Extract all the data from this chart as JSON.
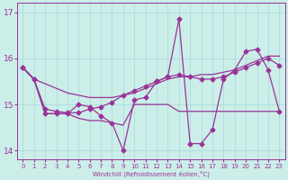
{
  "xlabel": "Windchill (Refroidissement éolien,°C)",
  "background_color": "#cceee8",
  "grid_color": "#aadddd",
  "line_color": "#993399",
  "xlim": [
    -0.5,
    23.5
  ],
  "ylim": [
    13.8,
    17.2
  ],
  "xticks": [
    0,
    1,
    2,
    3,
    4,
    5,
    6,
    7,
    8,
    9,
    10,
    11,
    12,
    13,
    14,
    15,
    16,
    17,
    18,
    19,
    20,
    21,
    22,
    23
  ],
  "yticks": [
    14,
    15,
    16,
    17
  ],
  "line1_x": [
    0,
    1,
    2,
    3,
    4,
    5,
    6,
    7,
    8,
    9,
    10,
    11,
    12,
    13,
    14,
    15,
    16,
    17,
    18,
    19,
    20,
    21,
    22,
    23
  ],
  "line1_y": [
    15.8,
    15.55,
    15.45,
    15.35,
    15.25,
    15.2,
    15.15,
    15.15,
    15.15,
    15.2,
    15.25,
    15.35,
    15.45,
    15.55,
    15.6,
    15.6,
    15.65,
    15.65,
    15.7,
    15.75,
    15.85,
    15.95,
    16.05,
    16.05
  ],
  "line2_x": [
    0,
    1,
    2,
    3,
    4,
    5,
    6,
    7,
    8,
    9,
    10,
    11,
    12,
    13,
    14,
    15,
    16,
    17,
    18,
    19,
    20,
    21,
    22,
    23
  ],
  "line2_y": [
    15.8,
    15.55,
    14.8,
    14.8,
    14.8,
    15.0,
    14.95,
    14.75,
    14.6,
    14.0,
    15.1,
    15.15,
    15.5,
    15.6,
    16.85,
    14.15,
    14.15,
    14.45,
    15.55,
    15.75,
    16.15,
    16.2,
    15.75,
    14.85
  ],
  "line3_x": [
    0,
    1,
    2,
    3,
    4,
    5,
    6,
    7,
    8,
    9,
    10,
    11,
    12,
    13,
    14,
    15,
    16,
    17,
    18,
    19,
    20,
    21,
    22,
    23
  ],
  "line3_y": [
    15.8,
    15.55,
    14.8,
    14.8,
    14.8,
    14.7,
    14.65,
    14.65,
    14.6,
    14.55,
    15.0,
    15.0,
    15.0,
    15.0,
    14.85,
    14.85,
    14.85,
    14.85,
    14.85,
    14.85,
    14.85,
    14.85,
    14.85,
    14.85
  ],
  "line4_x": [
    0,
    1,
    2,
    3,
    4,
    5,
    6,
    7,
    8,
    9,
    10,
    11,
    12,
    13,
    14,
    15,
    16,
    17,
    18,
    19,
    20,
    21,
    22,
    23
  ],
  "line4_y": [
    15.8,
    15.55,
    14.9,
    14.85,
    14.82,
    14.82,
    14.9,
    14.95,
    15.05,
    15.2,
    15.3,
    15.4,
    15.5,
    15.6,
    15.65,
    15.6,
    15.55,
    15.55,
    15.6,
    15.7,
    15.8,
    15.9,
    16.0,
    15.85
  ]
}
